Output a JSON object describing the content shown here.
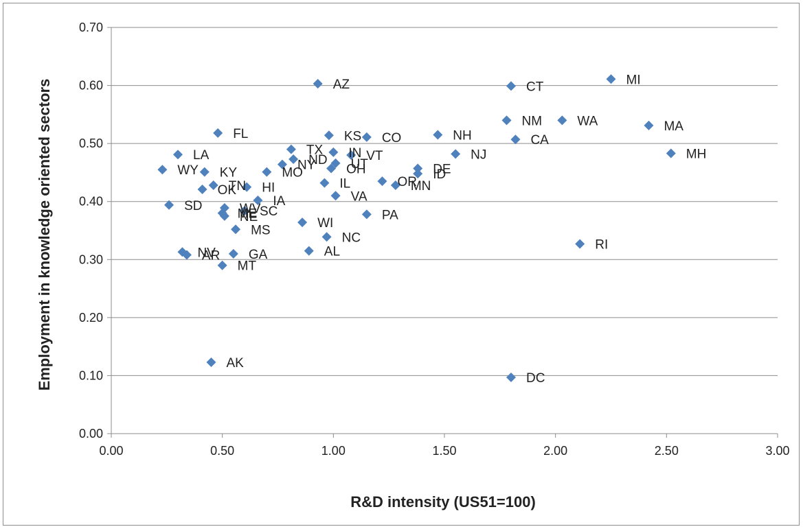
{
  "chart_data": {
    "type": "scatter",
    "title": "",
    "xlabel": "R&D  intensity (US51=100)",
    "ylabel": "Employment in knowledge oriented sectors",
    "xlim": [
      0,
      3
    ],
    "ylim": [
      0,
      0.7
    ],
    "x_ticks": [
      "0.00",
      "0.50",
      "1.00",
      "1.50",
      "2.00",
      "2.50",
      "3.00"
    ],
    "y_ticks": [
      "0.00",
      "0.10",
      "0.20",
      "0.30",
      "0.40",
      "0.50",
      "0.60",
      "0.70"
    ],
    "grid": "horizontal",
    "legend": "none",
    "marker_color": "#4f81bd",
    "points": [
      {
        "label": "AZ",
        "x": 0.93,
        "y": 0.603
      },
      {
        "label": "CT",
        "x": 1.8,
        "y": 0.599
      },
      {
        "label": "MI",
        "x": 2.25,
        "y": 0.611
      },
      {
        "label": "NM",
        "x": 1.78,
        "y": 0.54
      },
      {
        "label": "WA",
        "x": 2.03,
        "y": 0.54
      },
      {
        "label": "MA",
        "x": 2.42,
        "y": 0.531
      },
      {
        "label": "CA",
        "x": 1.82,
        "y": 0.507
      },
      {
        "label": "MH",
        "x": 2.52,
        "y": 0.483
      },
      {
        "label": "FL",
        "x": 0.48,
        "y": 0.518
      },
      {
        "label": "KS",
        "x": 0.98,
        "y": 0.514
      },
      {
        "label": "CO",
        "x": 1.15,
        "y": 0.511
      },
      {
        "label": "NH",
        "x": 1.47,
        "y": 0.515
      },
      {
        "label": "NJ",
        "x": 1.55,
        "y": 0.482
      },
      {
        "label": "LA",
        "x": 0.3,
        "y": 0.481
      },
      {
        "label": "TX",
        "x": 0.81,
        "y": 0.49
      },
      {
        "label": "IN",
        "x": 1.0,
        "y": 0.485
      },
      {
        "label": "VT",
        "x": 1.08,
        "y": 0.48
      },
      {
        "label": "ND",
        "x": 0.82,
        "y": 0.473
      },
      {
        "label": "UT",
        "x": 1.01,
        "y": 0.466
      },
      {
        "label": "NY",
        "x": 0.77,
        "y": 0.464
      },
      {
        "label": "OH",
        "x": 0.99,
        "y": 0.457
      },
      {
        "label": "WY",
        "x": 0.23,
        "y": 0.455
      },
      {
        "label": "KY",
        "x": 0.42,
        "y": 0.451
      },
      {
        "label": "MO",
        "x": 0.7,
        "y": 0.451
      },
      {
        "label": "DE",
        "x": 1.38,
        "y": 0.457
      },
      {
        "label": "ID",
        "x": 1.38,
        "y": 0.448
      },
      {
        "label": "MN",
        "x": 1.28,
        "y": 0.428
      },
      {
        "label": "OR",
        "x": 1.22,
        "y": 0.435
      },
      {
        "label": "IL",
        "x": 0.96,
        "y": 0.432
      },
      {
        "label": "HI",
        "x": 0.61,
        "y": 0.425
      },
      {
        "label": "TN",
        "x": 0.46,
        "y": 0.428
      },
      {
        "label": "OK",
        "x": 0.41,
        "y": 0.421
      },
      {
        "label": "VA",
        "x": 1.01,
        "y": 0.41
      },
      {
        "label": "IA",
        "x": 0.66,
        "y": 0.402
      },
      {
        "label": "SD",
        "x": 0.26,
        "y": 0.394
      },
      {
        "label": "WV",
        "x": 0.51,
        "y": 0.389
      },
      {
        "label": "SC",
        "x": 0.6,
        "y": 0.384
      },
      {
        "label": "NE",
        "x": 0.51,
        "y": 0.375
      },
      {
        "label": "ME",
        "x": 0.5,
        "y": 0.38
      },
      {
        "label": "PA",
        "x": 1.15,
        "y": 0.378
      },
      {
        "label": "WI",
        "x": 0.86,
        "y": 0.364
      },
      {
        "label": "MS",
        "x": 0.56,
        "y": 0.352
      },
      {
        "label": "NC",
        "x": 0.97,
        "y": 0.339
      },
      {
        "label": "RI",
        "x": 2.11,
        "y": 0.327
      },
      {
        "label": "NV",
        "x": 0.32,
        "y": 0.313
      },
      {
        "label": "AR",
        "x": 0.34,
        "y": 0.308
      },
      {
        "label": "GA",
        "x": 0.55,
        "y": 0.31
      },
      {
        "label": "AL",
        "x": 0.89,
        "y": 0.315
      },
      {
        "label": "MT",
        "x": 0.5,
        "y": 0.29
      },
      {
        "label": "AK",
        "x": 0.45,
        "y": 0.123
      },
      {
        "label": "DC",
        "x": 1.8,
        "y": 0.097
      }
    ]
  }
}
